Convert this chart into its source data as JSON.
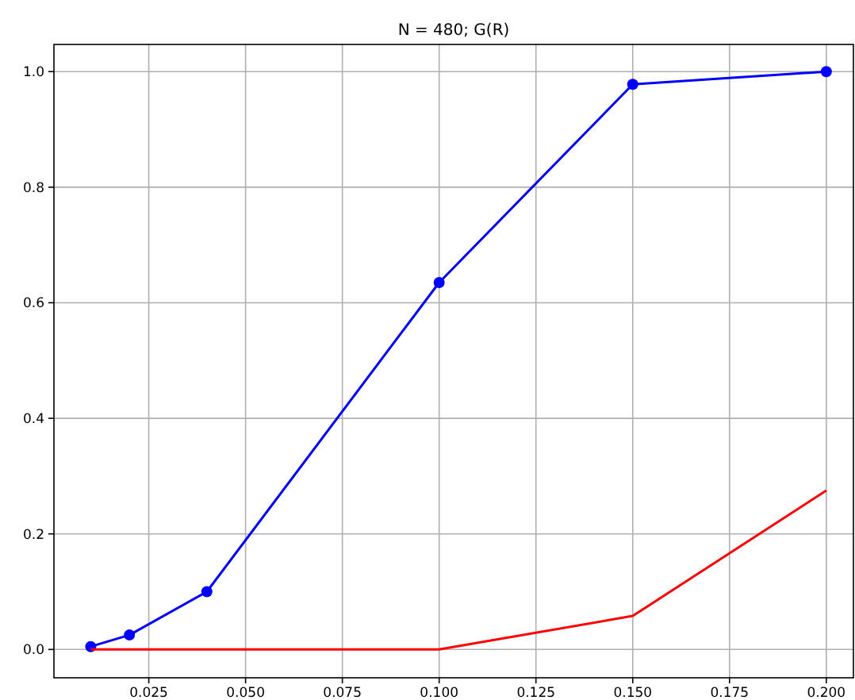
{
  "chart_data": {
    "type": "line",
    "title": "N = 480; G(R)",
    "x": [
      0.01,
      0.02,
      0.04,
      0.1,
      0.15,
      0.2
    ],
    "series": [
      {
        "color": "#0000ff",
        "marker": "circle",
        "values": [
          0.005,
          0.025,
          0.1,
          0.635,
          0.978,
          1.0
        ]
      },
      {
        "color": "#ff0000",
        "marker": "none",
        "values": [
          0,
          0,
          0,
          0,
          0.058,
          0.275
        ]
      }
    ],
    "xlim": [
      0.0005,
      0.207
    ],
    "ylim": [
      -0.049,
      1.047
    ],
    "xticks": [
      {
        "value": 0.025,
        "label": "0.025"
      },
      {
        "value": 0.05,
        "label": "0.050"
      },
      {
        "value": 0.075,
        "label": "0.075"
      },
      {
        "value": 0.1,
        "label": "0.100"
      },
      {
        "value": 0.125,
        "label": "0.125"
      },
      {
        "value": 0.15,
        "label": "0.150"
      },
      {
        "value": 0.175,
        "label": "0.175"
      },
      {
        "value": 0.2,
        "label": "0.200"
      }
    ],
    "yticks": [
      {
        "value": 0,
        "label": "0.0"
      },
      {
        "value": 0.2,
        "label": "0.2"
      },
      {
        "value": 0.4,
        "label": "0.4"
      },
      {
        "value": 0.6,
        "label": "0.6"
      },
      {
        "value": 0.8,
        "label": "0.8"
      },
      {
        "value": 1,
        "label": "1.0"
      }
    ],
    "grid": true
  }
}
